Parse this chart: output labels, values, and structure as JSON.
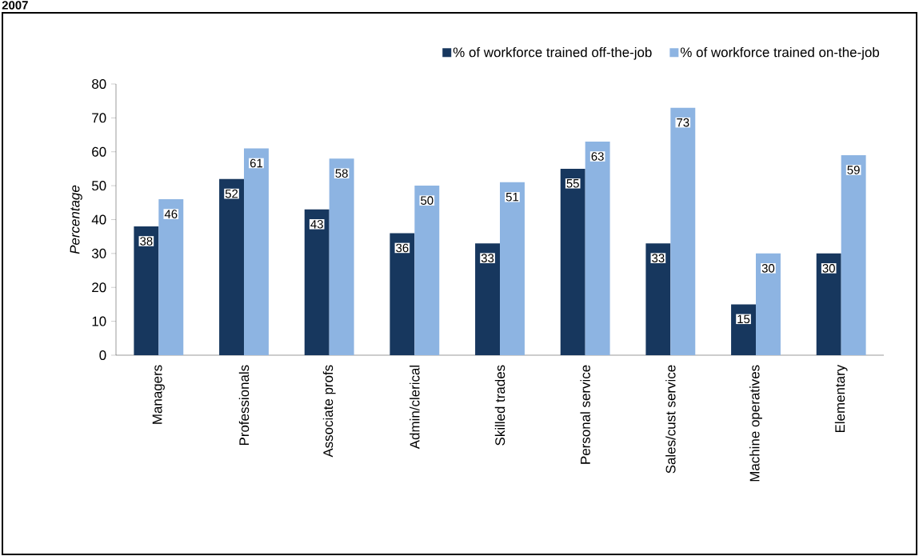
{
  "chart_data": {
    "type": "bar",
    "title": "2007",
    "ylabel": "Percentage",
    "categories": [
      "Managers",
      "Professionals",
      "Associate profs",
      "Admin/clerical",
      "Skilled trades",
      "Personal service",
      "Sales/cust service",
      "Machine operatives",
      "Elementary"
    ],
    "series": [
      {
        "name": "% of workforce trained off-the-job",
        "color": "#17375e",
        "values": [
          38,
          52,
          43,
          36,
          33,
          55,
          33,
          15,
          30
        ]
      },
      {
        "name": "% of workforce trained on-the-job",
        "color": "#8db4e2",
        "values": [
          46,
          61,
          58,
          50,
          51,
          63,
          73,
          30,
          59
        ]
      }
    ],
    "ylim": [
      0,
      80
    ],
    "yticks": [
      0,
      10,
      20,
      30,
      40,
      50,
      60,
      70,
      80
    ],
    "data_labels": true,
    "legend": "top right",
    "grid": false
  }
}
